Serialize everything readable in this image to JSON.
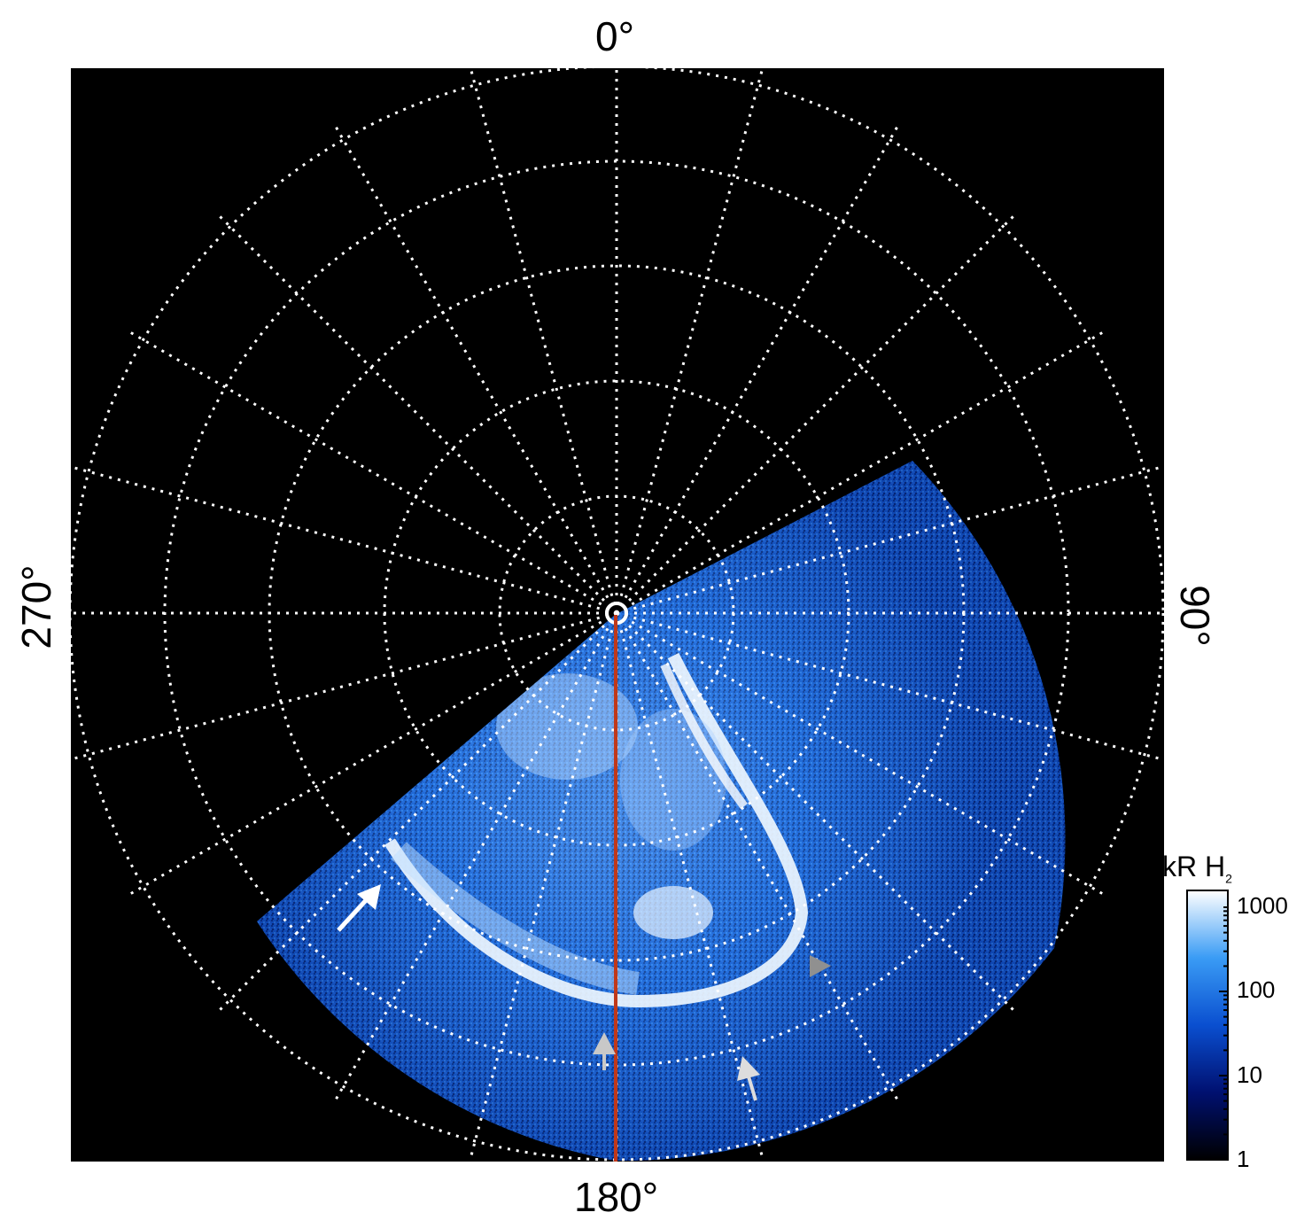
{
  "image": {
    "description_label": "Auroral polar projection",
    "colors": {
      "background": "#000000",
      "grid": "#ffffff",
      "meridian": "#c0381a",
      "emission_dark": "#00106a",
      "emission_mid": "#1a6fe0",
      "emission_bright": "#e8f4ff"
    }
  },
  "axis_labels": {
    "top": "0°",
    "bottom": "180°",
    "left": "270°",
    "right": "90°"
  },
  "colorbar": {
    "title": "kR H",
    "title_sub": "2",
    "ticks": [
      "1000",
      "100",
      "10",
      "1"
    ],
    "tick_values": [
      1000,
      100,
      10,
      1
    ]
  },
  "markers": [
    {
      "name": "white-arrow",
      "color": "#ffffff"
    },
    {
      "name": "gray-arrow-lower-left",
      "color": "#c8c8c8"
    },
    {
      "name": "gray-arrow-lower-right",
      "color": "#c8c8c8"
    },
    {
      "name": "gray-triangle-right",
      "color": "#909090"
    }
  ]
}
